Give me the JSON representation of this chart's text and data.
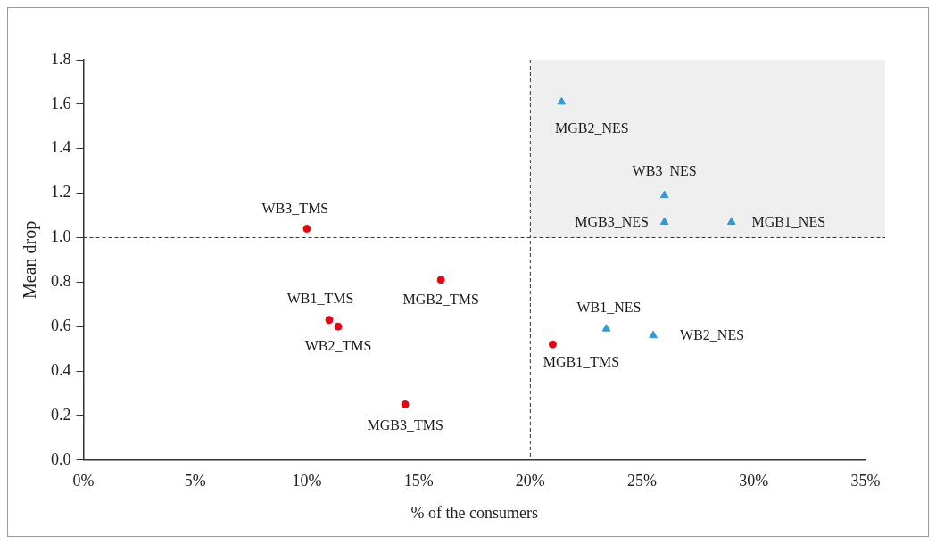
{
  "chart_data": {
    "type": "scatter",
    "xlabel": "% of the consumers",
    "ylabel": "Mean drop",
    "xlim": [
      0,
      35
    ],
    "xticks": [
      {
        "value": 0,
        "label": "0%"
      },
      {
        "value": 5,
        "label": "5%"
      },
      {
        "value": 10,
        "label": "10%"
      },
      {
        "value": 15,
        "label": "15%"
      },
      {
        "value": 20,
        "label": "20%"
      },
      {
        "value": 25,
        "label": "25%"
      },
      {
        "value": 30,
        "label": "30%"
      },
      {
        "value": 35,
        "label": "35%"
      }
    ],
    "ylim": [
      0,
      1.8
    ],
    "yticks": [
      {
        "value": 0,
        "label": "0.0"
      },
      0.2,
      0.4,
      0.6,
      0.8,
      {
        "value": 1,
        "label": "1.0"
      },
      1.2,
      1.4,
      1.6,
      1.8
    ],
    "grid": false,
    "legend": false,
    "series": [
      {
        "color": "#e30613",
        "marker": "circle",
        "x": [
          10,
          11,
          11.4,
          16,
          14.4,
          21
        ],
        "values": [
          1.04,
          0.63,
          0.6,
          0.81,
          0.25,
          0.52
        ],
        "value_labels": [
          "WB3_TMS",
          "WB1_TMS",
          "WB2_TMS",
          "MGB2_TMS",
          "MGB3_TMS",
          "MGB1_TMS"
        ]
      },
      {
        "color": "#2e9bd8",
        "marker": "triangle",
        "x": [
          21.4,
          26,
          26,
          29,
          23.4,
          25.5
        ],
        "values": [
          1.61,
          1.19,
          1.07,
          1.07,
          0.59,
          0.56
        ],
        "value_labels": [
          "MGB2_NES",
          "WB3_NES",
          "MGB3_NES",
          "MGB1_NES",
          "WB1_NES",
          "WB2_NES"
        ]
      }
    ],
    "ref_lines": [
      {
        "axis": "x",
        "value": 20,
        "line_style": "dashed",
        "color": "#333333"
      },
      {
        "axis": "y",
        "value": 1,
        "line_style": "dashed",
        "color": "#333333"
      }
    ],
    "bands": [
      {
        "axis": "y",
        "from": 1,
        "to": 1.8,
        "color": "#efefef"
      }
    ]
  }
}
